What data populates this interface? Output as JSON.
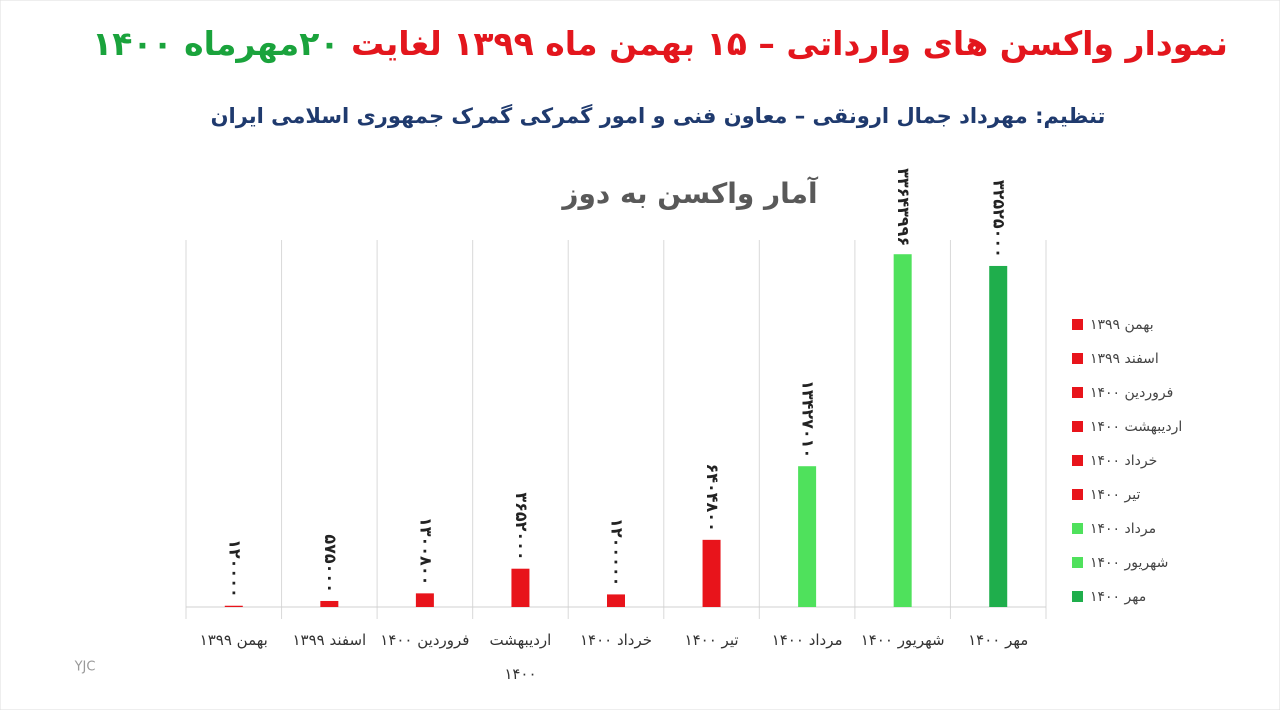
{
  "chart_data": {
    "type": "bar",
    "title": [
      "نمودار واکسن های وارداتی – ۱۵ بهمن ماه ۱۳۹۹ لغایت",
      "۲۰مهرماه ۱۴۰۰"
    ],
    "title_colors": [
      "#e3161d",
      "#1aa33c"
    ],
    "subtitle": "تنظیم: مهرداد جمال ارونقی – معاون فنی و امور گمرکی گمرک جمهوری اسلامی ایران",
    "chart_title": "آمار واکسن به دوز",
    "categories": [
      "بهمن ۱۳۹۹",
      "اسفند ۱۳۹۹",
      "فروردین ۱۴۰۰",
      "اردیبهشت ۱۴۰۰",
      "خرداد ۱۴۰۰",
      "تیر ۱۴۰۰",
      "مرداد ۱۴۰۰",
      "شهریور ۱۴۰۰",
      "مهر ۱۴۰۰"
    ],
    "values": [
      120000,
      575000,
      1300800,
      3652000,
      1200000,
      6404800,
      13427010,
      33643996,
      32525000
    ],
    "value_labels": [
      "۱۲۰۰۰۰",
      "۵۷۵۰۰۰",
      "۱۳۰۰۸۰۰",
      "۳۶۵۲۰۰۰",
      "۱۲۰۰۰۰۰",
      "۶۴۰۴۸۰۰",
      "۱۳۴۲۷۰۱۰",
      "۳۳۶۴۳۹۹۶",
      "۳۲۵۲۵۰۰۰"
    ],
    "colors": [
      "#e8141b",
      "#e8141b",
      "#e8141b",
      "#e8141b",
      "#e8141b",
      "#e8141b",
      "#4fe15c",
      "#4fe15c",
      "#1fae4c"
    ],
    "ylim": [
      0,
      35000000
    ],
    "legend": "right",
    "watermark": "YJC"
  }
}
